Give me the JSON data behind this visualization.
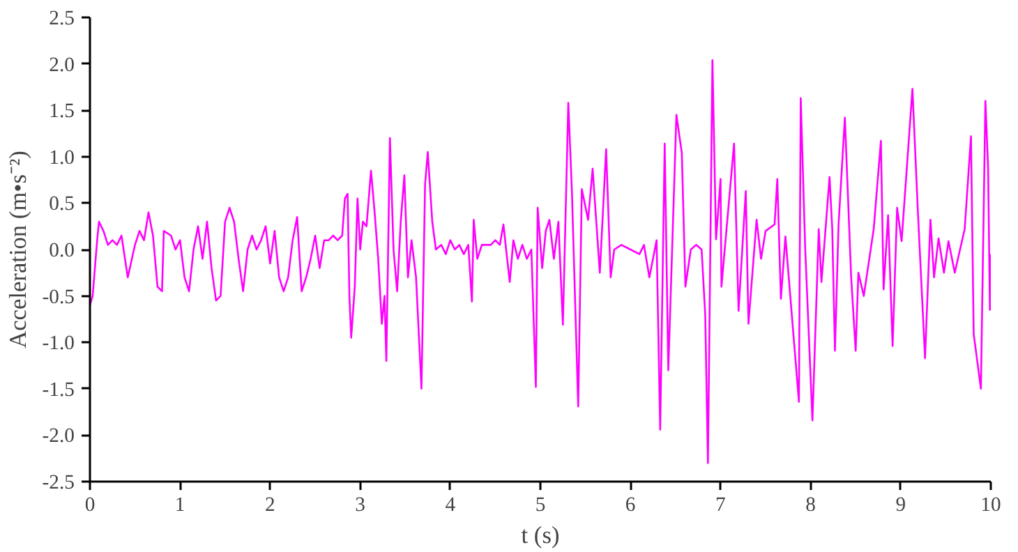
{
  "chart_data": {
    "type": "line",
    "xlabel": "t (s)",
    "ylabel": "Acceleration (m•s⁻²)",
    "xlim": [
      0,
      10
    ],
    "ylim": [
      -2.5,
      2.5
    ],
    "xticks": [
      0,
      1,
      2,
      3,
      4,
      5,
      6,
      7,
      8,
      9,
      10
    ],
    "yticks": [
      {
        "value": -2.5,
        "label": "-2.5"
      },
      {
        "value": -2,
        "label": "-2.0"
      },
      {
        "value": -1.5,
        "label": "-1.5"
      },
      {
        "value": -1,
        "label": "-1.0"
      },
      {
        "value": -0.5,
        "label": "-0.5"
      },
      {
        "value": 0,
        "label": "0.0"
      },
      {
        "value": 0.5,
        "label": "0.5"
      },
      {
        "value": 1,
        "label": "1.0"
      },
      {
        "value": 1.5,
        "label": "1.5"
      },
      {
        "value": 2,
        "label": "2.0"
      },
      {
        "value": 2.5,
        "label": "2.5"
      }
    ],
    "grid": false,
    "marker": "none",
    "line_style": "solid",
    "series": [
      {
        "color": "#ff00ff",
        "x": [
          0,
          0.03,
          0.08,
          0.1,
          0.15,
          0.2,
          0.25,
          0.3,
          0.35,
          0.42,
          0.5,
          0.55,
          0.6,
          0.65,
          0.7,
          0.75,
          0.8,
          0.82,
          0.9,
          0.95,
          1.0,
          1.05,
          1.1,
          1.15,
          1.2,
          1.25,
          1.3,
          1.35,
          1.4,
          1.45,
          1.5,
          1.55,
          1.6,
          1.65,
          1.7,
          1.75,
          1.8,
          1.85,
          1.9,
          1.95,
          2.0,
          2.05,
          2.1,
          2.15,
          2.2,
          2.25,
          2.3,
          2.35,
          2.4,
          2.45,
          2.5,
          2.55,
          2.6,
          2.65,
          2.7,
          2.75,
          2.8,
          2.83,
          2.86,
          2.88,
          2.9,
          2.94,
          2.97,
          3.0,
          3.03,
          3.07,
          3.12,
          3.16,
          3.2,
          3.24,
          3.27,
          3.29,
          3.33,
          3.37,
          3.41,
          3.45,
          3.49,
          3.53,
          3.57,
          3.62,
          3.68,
          3.72,
          3.75,
          3.8,
          3.84,
          3.9,
          3.95,
          4.0,
          4.05,
          4.1,
          4.15,
          4.2,
          4.24,
          4.26,
          4.3,
          4.35,
          4.45,
          4.5,
          4.55,
          4.59,
          4.62,
          4.66,
          4.7,
          4.75,
          4.8,
          4.85,
          4.9,
          4.95,
          4.97,
          5.02,
          5.06,
          5.1,
          5.15,
          5.2,
          5.25,
          5.31,
          5.35,
          5.42,
          5.46,
          5.53,
          5.58,
          5.66,
          5.73,
          5.78,
          5.82,
          5.9,
          6.0,
          6.1,
          6.15,
          6.21,
          6.29,
          6.33,
          6.38,
          6.42,
          6.51,
          6.57,
          6.61,
          6.67,
          6.73,
          6.79,
          6.83,
          6.86,
          6.91,
          6.95,
          7.0,
          7.01,
          7.15,
          7.2,
          7.28,
          7.31,
          7.4,
          7.45,
          7.5,
          7.6,
          7.63,
          7.67,
          7.72,
          7.87,
          7.89,
          7.94,
          8.02,
          8.09,
          8.12,
          8.21,
          8.24,
          8.27,
          8.31,
          8.38,
          8.45,
          8.5,
          8.53,
          8.59,
          8.7,
          8.78,
          8.81,
          8.86,
          8.91,
          8.96,
          9.01,
          9.13,
          9.19,
          9.27,
          9.33,
          9.37,
          9.42,
          9.48,
          9.53,
          9.6,
          9.71,
          9.78,
          9.81,
          9.89,
          9.94,
          9.97,
          9.99,
          10.0
        ],
        "values": [
          -0.6,
          -0.5,
          0.1,
          0.3,
          0.2,
          0.05,
          0.1,
          0.05,
          0.15,
          -0.3,
          0.05,
          0.2,
          0.1,
          0.4,
          0.15,
          -0.4,
          -0.45,
          0.2,
          0.15,
          0.0,
          0.1,
          -0.3,
          -0.45,
          0.0,
          0.25,
          -0.1,
          0.3,
          -0.2,
          -0.55,
          -0.5,
          0.3,
          0.45,
          0.3,
          -0.1,
          -0.45,
          0.0,
          0.15,
          0.0,
          0.1,
          0.25,
          -0.15,
          0.2,
          -0.3,
          -0.45,
          -0.3,
          0.1,
          0.35,
          -0.45,
          -0.3,
          -0.1,
          0.15,
          -0.2,
          0.1,
          0.1,
          0.15,
          0.1,
          0.15,
          0.55,
          0.6,
          -0.5,
          -0.95,
          -0.4,
          0.55,
          0.0,
          0.3,
          0.25,
          0.85,
          0.4,
          -0.1,
          -0.8,
          -0.5,
          -1.2,
          1.2,
          0.0,
          -0.45,
          0.3,
          0.8,
          -0.3,
          0.1,
          -0.3,
          -1.5,
          0.7,
          1.05,
          0.3,
          0.0,
          0.05,
          -0.05,
          0.1,
          0.0,
          0.05,
          -0.05,
          0.05,
          -0.56,
          0.32,
          -0.1,
          0.05,
          0.05,
          0.1,
          0.05,
          0.27,
          0.0,
          -0.35,
          0.1,
          -0.1,
          0.05,
          -0.1,
          0.0,
          -1.48,
          0.45,
          -0.2,
          0.2,
          0.32,
          -0.1,
          0.3,
          -0.81,
          1.58,
          0.63,
          -1.69,
          0.65,
          0.32,
          0.87,
          -0.25,
          1.08,
          -0.3,
          0.0,
          0.05,
          0.0,
          -0.05,
          0.05,
          -0.3,
          0.1,
          -1.94,
          1.14,
          -1.3,
          1.45,
          1.04,
          -0.4,
          0.0,
          0.05,
          0.0,
          -0.7,
          -2.3,
          2.04,
          0.11,
          0.76,
          -0.4,
          1.14,
          -0.66,
          0.63,
          -0.8,
          0.32,
          -0.1,
          0.2,
          0.27,
          0.76,
          -0.53,
          0.14,
          -1.64,
          1.63,
          0.0,
          -1.84,
          0.22,
          -0.35,
          0.78,
          0.22,
          -1.09,
          0.27,
          1.42,
          -0.3,
          -1.09,
          -0.25,
          -0.5,
          0.22,
          1.17,
          -0.43,
          0.37,
          -1.04,
          0.45,
          0.09,
          1.73,
          0.42,
          -1.17,
          0.32,
          -0.3,
          0.12,
          -0.25,
          0.09,
          -0.25,
          0.22,
          1.22,
          -0.91,
          -1.5,
          1.6,
          0.88,
          -0.65,
          -0.05
        ]
      }
    ]
  }
}
